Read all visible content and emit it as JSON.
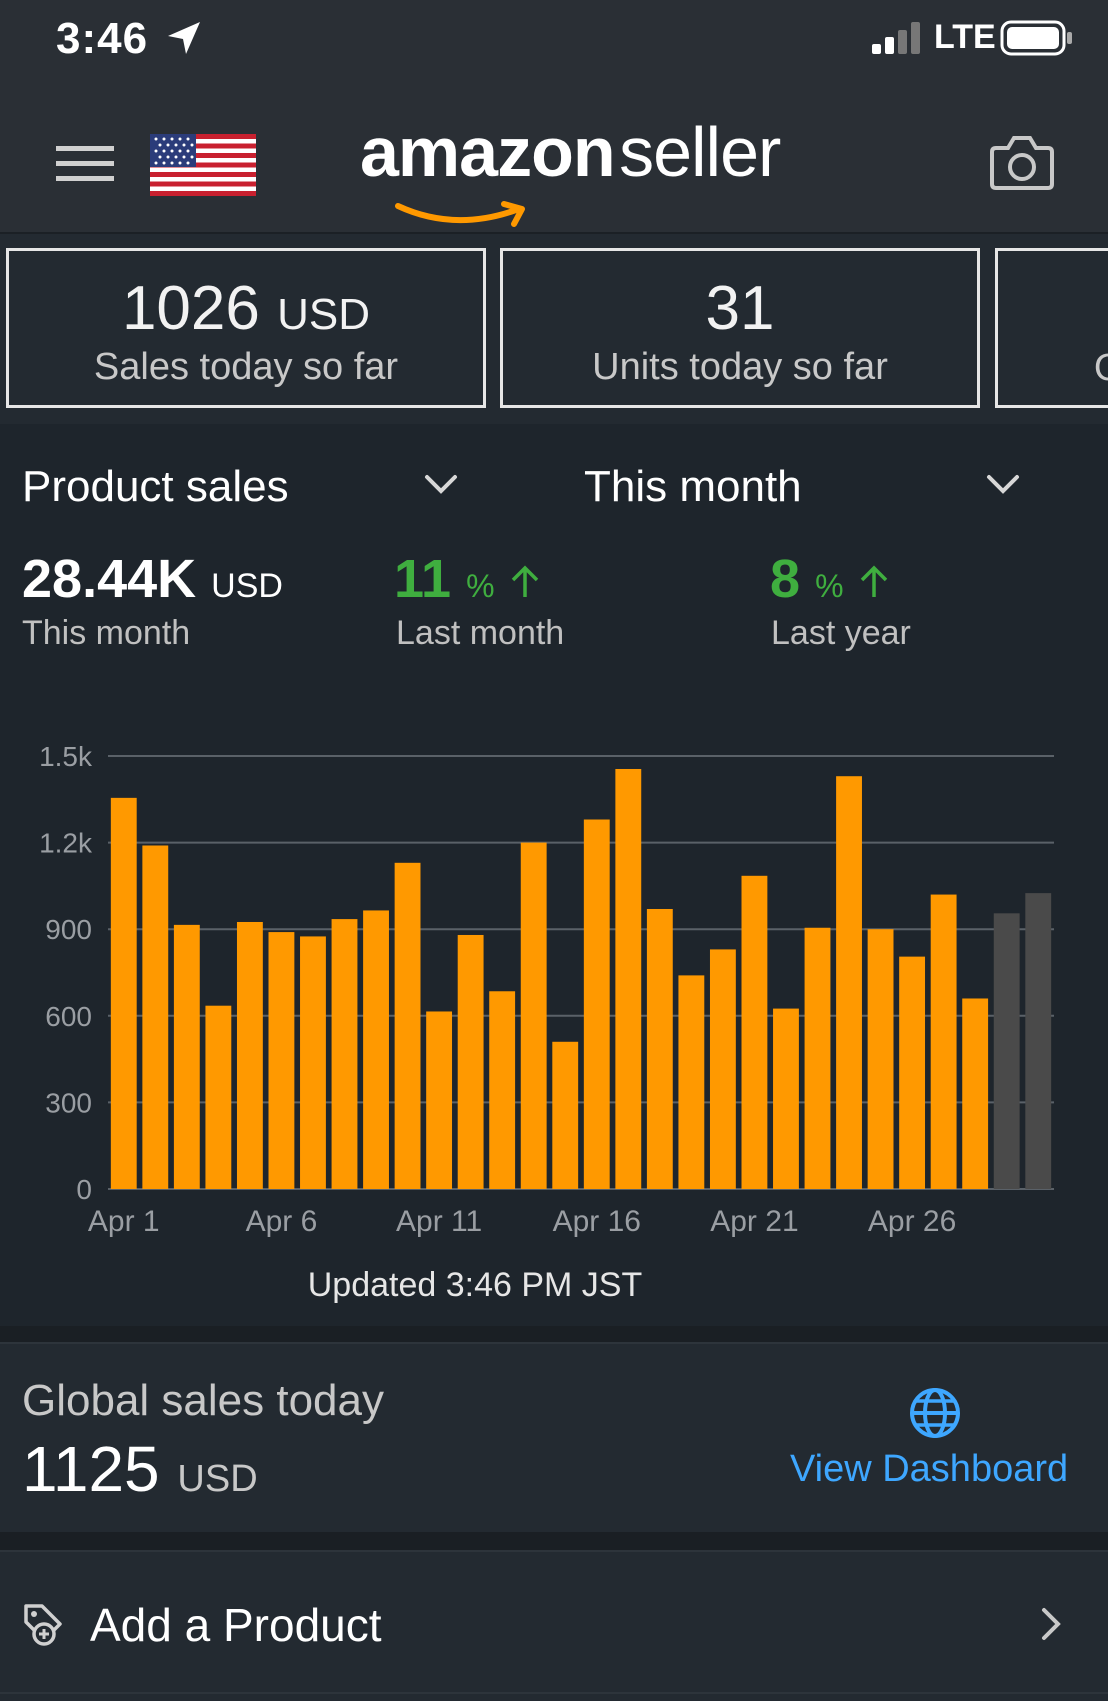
{
  "status_bar": {
    "time": "3:46",
    "network": "LTE"
  },
  "header": {
    "brand": "amazon",
    "brand_suffix": "seller",
    "marketplace_flag": "us-flag-icon"
  },
  "metric_cards": [
    {
      "value": "1026",
      "unit": "USD",
      "label": "Sales today so far"
    },
    {
      "value": "31",
      "unit": "",
      "label": "Units today so far"
    },
    {
      "value": "",
      "unit": "",
      "label": "O"
    }
  ],
  "sales_panel": {
    "metric_dropdown": "Product sales",
    "period_dropdown": "This month",
    "this_month_value": "28.44K",
    "this_month_unit": "USD",
    "this_month_label": "This month",
    "last_month_pct": "11",
    "last_month_label": "Last month",
    "last_year_pct": "8",
    "last_year_label": "Last year",
    "pct_sign": "%",
    "updated": "Updated 3:46 PM JST"
  },
  "chart_data": {
    "type": "bar",
    "ylim": [
      0,
      1500
    ],
    "yticks": [
      "0",
      "300",
      "600",
      "900",
      "1.2k",
      "1.5k"
    ],
    "xtick_labels": [
      "Apr 1",
      "Apr 6",
      "Apr 11",
      "Apr 16",
      "Apr 21",
      "Apr 26"
    ],
    "categories": [
      "Apr 1",
      "Apr 2",
      "Apr 3",
      "Apr 4",
      "Apr 5",
      "Apr 6",
      "Apr 7",
      "Apr 8",
      "Apr 9",
      "Apr 10",
      "Apr 11",
      "Apr 12",
      "Apr 13",
      "Apr 14",
      "Apr 15",
      "Apr 16",
      "Apr 17",
      "Apr 18",
      "Apr 19",
      "Apr 20",
      "Apr 21",
      "Apr 22",
      "Apr 23",
      "Apr 24",
      "Apr 25",
      "Apr 26",
      "Apr 27",
      "Apr 28",
      "Apr 29",
      "Apr 30"
    ],
    "values": [
      1355,
      1190,
      915,
      635,
      925,
      890,
      875,
      935,
      965,
      1130,
      615,
      880,
      685,
      1200,
      510,
      1280,
      1455,
      970,
      740,
      830,
      1085,
      625,
      905,
      1430,
      900,
      805,
      1020,
      660,
      955,
      1025
    ],
    "bar_colors": [
      "#ff9900",
      "#ff9900",
      "#ff9900",
      "#ff9900",
      "#ff9900",
      "#ff9900",
      "#ff9900",
      "#ff9900",
      "#ff9900",
      "#ff9900",
      "#ff9900",
      "#ff9900",
      "#ff9900",
      "#ff9900",
      "#ff9900",
      "#ff9900",
      "#ff9900",
      "#ff9900",
      "#ff9900",
      "#ff9900",
      "#ff9900",
      "#ff9900",
      "#ff9900",
      "#ff9900",
      "#ff9900",
      "#ff9900",
      "#ff9900",
      "#ff9900",
      "#4a4a4a",
      "#4a4a4a"
    ],
    "grid": true
  },
  "global_sales": {
    "title": "Global sales today",
    "value": "1125",
    "unit": "USD",
    "link": "View Dashboard"
  },
  "add_product": {
    "label": "Add a Product"
  },
  "colors": {
    "accent": "#ff9900",
    "positive": "#3fae3f",
    "link": "#3ea7ff"
  }
}
